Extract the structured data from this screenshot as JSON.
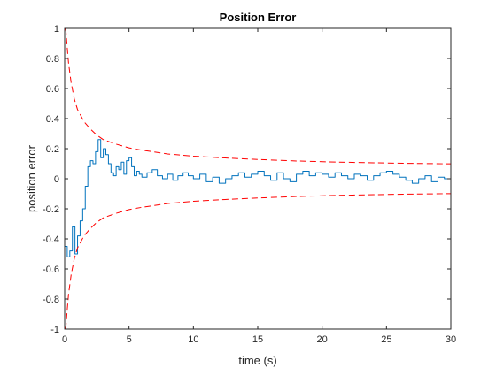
{
  "chart_data": {
    "type": "line",
    "title": "Position Error",
    "xlabel": "time (s)",
    "ylabel": "position error",
    "xlim": [
      0,
      30
    ],
    "ylim": [
      -1,
      1
    ],
    "xticks": [
      0,
      5,
      10,
      15,
      20,
      25,
      30
    ],
    "xtick_labels": [
      "0",
      "5",
      "10",
      "15",
      "20",
      "25",
      "30"
    ],
    "yticks": [
      -1,
      -0.8,
      -0.6,
      -0.4,
      -0.2,
      0,
      0.2,
      0.4,
      0.6,
      0.8,
      1
    ],
    "ytick_labels": [
      "-1",
      "-0.8",
      "-0.6",
      "-0.4",
      "-0.2",
      "0",
      "0.2",
      "0.4",
      "0.6",
      "0.8",
      "1"
    ],
    "grid": false,
    "box": true,
    "series": [
      {
        "style": "stairs",
        "color": "#0072BD",
        "x": [
          0,
          0.2,
          0.4,
          0.6,
          0.8,
          1.0,
          1.2,
          1.4,
          1.6,
          1.8,
          2.0,
          2.2,
          2.4,
          2.6,
          2.8,
          3.0,
          3.2,
          3.4,
          3.6,
          3.8,
          4.0,
          4.2,
          4.4,
          4.6,
          4.8,
          5.0,
          5.2,
          5.4,
          5.6,
          5.8,
          6.0,
          6.4,
          6.8,
          7.2,
          7.6,
          8.0,
          8.4,
          8.8,
          9.2,
          9.6,
          10.0,
          10.5,
          11.0,
          11.5,
          12.0,
          12.5,
          13.0,
          13.5,
          14.0,
          14.5,
          15.0,
          15.5,
          16.0,
          16.5,
          17.0,
          17.5,
          18.0,
          18.5,
          19.0,
          19.5,
          20.0,
          20.5,
          21.0,
          21.5,
          22.0,
          22.5,
          23.0,
          23.5,
          24.0,
          24.5,
          25.0,
          25.5,
          26.0,
          26.5,
          27.0,
          27.5,
          28.0,
          28.5,
          29.0,
          29.5,
          30.0
        ],
        "y": [
          -0.45,
          -0.52,
          -0.48,
          -0.32,
          -0.5,
          -0.38,
          -0.28,
          -0.2,
          -0.05,
          0.08,
          0.12,
          0.1,
          0.18,
          0.26,
          0.14,
          0.2,
          0.16,
          0.1,
          0.04,
          0.02,
          0.08,
          0.06,
          0.11,
          0.03,
          0.12,
          0.14,
          0.08,
          0.02,
          0.05,
          0.03,
          0.01,
          0.04,
          0.06,
          0.02,
          0.0,
          0.03,
          -0.01,
          0.02,
          0.04,
          0.02,
          0.0,
          0.03,
          -0.02,
          0.01,
          -0.03,
          0.0,
          0.02,
          0.04,
          0.01,
          0.03,
          0.05,
          0.02,
          -0.01,
          0.04,
          0.0,
          -0.02,
          0.03,
          0.05,
          0.02,
          0.04,
          0.03,
          0.01,
          0.04,
          0.02,
          0.0,
          0.03,
          0.02,
          -0.01,
          0.02,
          0.04,
          0.05,
          0.03,
          0.01,
          -0.01,
          -0.03,
          0.0,
          0.02,
          -0.02,
          0.01,
          0.0,
          -0.01
        ]
      },
      {
        "style": "dashed",
        "color": "#FF0000",
        "x": [
          0.05,
          0.1,
          0.2,
          0.3,
          0.5,
          0.75,
          1.0,
          1.5,
          2.0,
          2.5,
          3.0,
          4.0,
          5.0,
          6.0,
          8.0,
          10.0,
          12.0,
          15.0,
          18.0,
          21.0,
          24.0,
          27.0,
          30.0
        ],
        "y": [
          1.0,
          0.98,
          0.87,
          0.77,
          0.64,
          0.53,
          0.46,
          0.38,
          0.33,
          0.29,
          0.26,
          0.23,
          0.205,
          0.19,
          0.165,
          0.15,
          0.14,
          0.128,
          0.118,
          0.111,
          0.106,
          0.102,
          0.099
        ]
      },
      {
        "style": "dashed",
        "color": "#FF0000",
        "x": [
          0.05,
          0.1,
          0.2,
          0.3,
          0.5,
          0.75,
          1.0,
          1.5,
          2.0,
          2.5,
          3.0,
          4.0,
          5.0,
          6.0,
          8.0,
          10.0,
          12.0,
          15.0,
          18.0,
          21.0,
          24.0,
          27.0,
          30.0
        ],
        "y": [
          -1.0,
          -0.98,
          -0.87,
          -0.77,
          -0.64,
          -0.53,
          -0.46,
          -0.38,
          -0.33,
          -0.29,
          -0.26,
          -0.23,
          -0.205,
          -0.19,
          -0.165,
          -0.15,
          -0.14,
          -0.128,
          -0.118,
          -0.111,
          -0.106,
          -0.102,
          -0.099
        ]
      }
    ]
  }
}
